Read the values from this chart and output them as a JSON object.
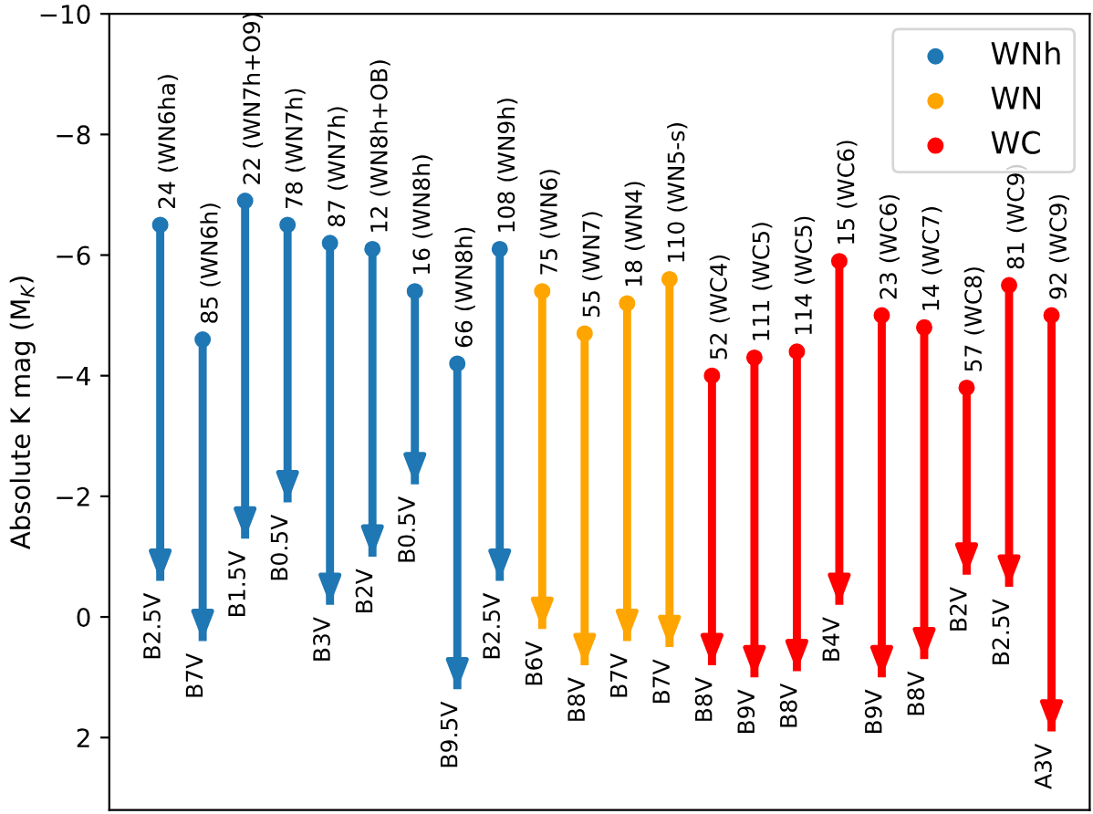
{
  "chart_data": {
    "type": "scatter",
    "ylabel": "Absolute K mag (M$_{K}$)",
    "categories": [
      "B2.5V",
      "B7V",
      "B1.5V",
      "B0.5V",
      "B3V",
      "B2V",
      "B0.5V",
      "B9.5V",
      "B2.5V",
      "B6V",
      "B8V",
      "B7V",
      "B7V",
      "B8V",
      "B9V",
      "B8V",
      "B4V",
      "B9V",
      "B8V",
      "B2V",
      "B2.5V",
      "A3V"
    ],
    "series": [
      {
        "name": "WNh",
        "color": "#1f77b4",
        "values": [
          -6.5,
          -4.6,
          -6.9,
          -6.5,
          -6.2,
          -6.1,
          -5.4,
          -4.2,
          -6.1,
          null,
          null,
          null,
          null,
          null,
          null,
          null,
          null,
          null,
          null,
          null,
          null,
          null
        ],
        "errors": [
          [
            -6.5,
            -0.6
          ],
          [
            -4.6,
            0.4
          ],
          [
            -6.9,
            -1.3
          ],
          [
            -6.5,
            -1.9
          ],
          [
            -6.2,
            -0.2
          ],
          [
            -6.1,
            -1.0
          ],
          [
            -5.4,
            -2.2
          ],
          [
            -4.2,
            1.2
          ],
          [
            -6.1,
            -0.6
          ],
          null,
          null,
          null,
          null,
          null,
          null,
          null,
          null,
          null,
          null,
          null,
          null,
          null
        ],
        "value_labels": [
          "24 (WN6ha)",
          "85 (WN6h)",
          "22 (WN7h+O9)",
          "78 (WN7h)",
          "87 (WN7h)",
          "12 (WN8h+OB)",
          "16 (WN8h)",
          "66 (WN8h)",
          "108 (WN9h)",
          null,
          null,
          null,
          null,
          null,
          null,
          null,
          null,
          null,
          null,
          null,
          null,
          null
        ]
      },
      {
        "name": "WN",
        "color": "#ffa500",
        "values": [
          null,
          null,
          null,
          null,
          null,
          null,
          null,
          null,
          null,
          -5.4,
          -4.7,
          -5.2,
          -5.6,
          null,
          null,
          null,
          null,
          null,
          null,
          null,
          null,
          null
        ],
        "errors": [
          null,
          null,
          null,
          null,
          null,
          null,
          null,
          null,
          null,
          [
            -5.4,
            0.2
          ],
          [
            -4.7,
            0.8
          ],
          [
            -5.2,
            0.4
          ],
          [
            -5.6,
            0.5
          ],
          null,
          null,
          null,
          null,
          null,
          null,
          null,
          null,
          null
        ],
        "value_labels": [
          null,
          null,
          null,
          null,
          null,
          null,
          null,
          null,
          null,
          "75 (WN6)",
          "55 (WN7)",
          "18 (WN4)",
          "110 (WN5-s)",
          null,
          null,
          null,
          null,
          null,
          null,
          null,
          null,
          null
        ]
      },
      {
        "name": "WC",
        "color": "#ff0000",
        "values": [
          null,
          null,
          null,
          null,
          null,
          null,
          null,
          null,
          null,
          null,
          null,
          null,
          null,
          -4.0,
          -4.3,
          -4.4,
          -5.9,
          -5.0,
          -4.8,
          -3.8,
          -5.5,
          -5.0
        ],
        "errors": [
          null,
          null,
          null,
          null,
          null,
          null,
          null,
          null,
          null,
          null,
          null,
          null,
          null,
          [
            -4.0,
            0.8
          ],
          [
            -4.3,
            1.0
          ],
          [
            -4.4,
            0.9
          ],
          [
            -5.9,
            -0.2
          ],
          [
            -5.0,
            1.0
          ],
          [
            -4.8,
            0.7
          ],
          [
            -3.8,
            -0.7
          ],
          [
            -5.5,
            -0.5
          ],
          [
            -5.0,
            1.9
          ]
        ],
        "value_labels": [
          null,
          null,
          null,
          null,
          null,
          null,
          null,
          null,
          null,
          null,
          null,
          null,
          null,
          "52 (WC4)",
          "111 (WC5)",
          "114 (WC5)",
          "15 (WC6)",
          "23 (WC6)",
          "14 (WC7)",
          "57 (WC8)",
          "81 (WC9)",
          "92 (WC9)"
        ]
      }
    ],
    "ylim": [
      3.2,
      -10
    ],
    "yticks": [
      -10,
      -8,
      -6,
      -4,
      -2,
      0,
      2
    ],
    "legend": "top right",
    "marker": "circle"
  }
}
